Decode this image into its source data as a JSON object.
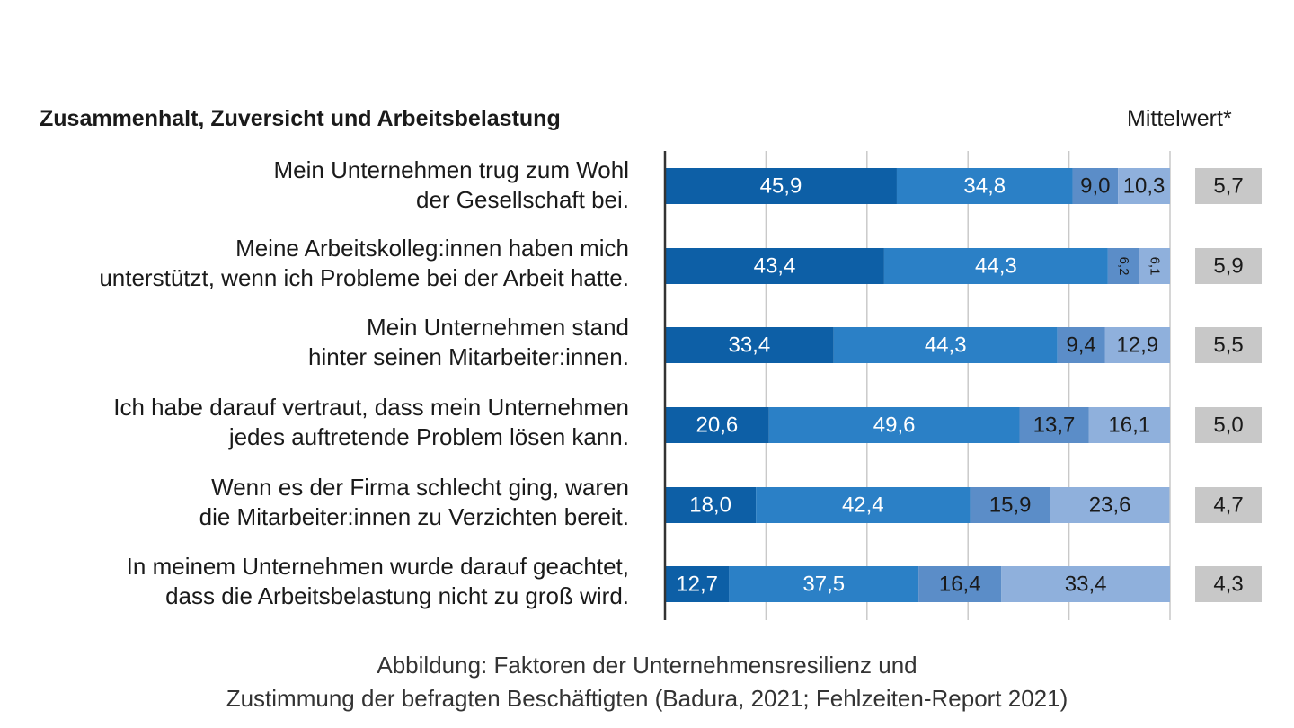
{
  "figure": {
    "caption_line1": "Abbildung: Faktoren der Unternehmensresilienz und",
    "caption_line2": "Zustimmung der befragten Beschäftigten (Badura, 2021; Fehlzeiten-Report 2021)"
  },
  "chart_data": {
    "type": "bar",
    "orientation": "horizontal",
    "stacked": true,
    "percent_of_total": true,
    "title": "Zusammenhalt, Zuversicht und Arbeitsbelastung",
    "mean_header": "Mittelwert*",
    "xlim": [
      0,
      100
    ],
    "grid": "vertical",
    "categories": [
      [
        "Mein Unternehmen trug zum Wohl",
        "der Gesellschaft bei."
      ],
      [
        "Meine Arbeitskolleg:innen haben mich",
        "unterstützt, wenn ich Probleme bei der Arbeit hatte."
      ],
      [
        "Mein Unternehmen stand",
        "hinter seinen Mitarbeiter:innen."
      ],
      [
        "Ich habe darauf vertraut, dass mein Unternehmen",
        "jedes auftretende Problem lösen kann."
      ],
      [
        "Wenn es der Firma schlecht ging, waren",
        "die Mitarbeiter:innen zu Verzichten bereit."
      ],
      [
        "In meinem Unternehmen wurde darauf geachtet,",
        "dass die Arbeitsbelastung nicht zu groß wird."
      ]
    ],
    "series": [
      {
        "color": "#0d5fa6",
        "values": [
          45.9,
          43.4,
          33.4,
          20.6,
          18.0,
          12.7
        ]
      },
      {
        "color": "#2b80c6",
        "values": [
          34.8,
          44.3,
          44.3,
          49.6,
          42.4,
          37.5
        ]
      },
      {
        "color": "#5b8dc8",
        "values": [
          9.0,
          6.2,
          9.4,
          13.7,
          15.9,
          16.4
        ]
      },
      {
        "color": "#8fb0dc",
        "values": [
          10.3,
          6.1,
          12.9,
          16.1,
          23.6,
          33.4
        ]
      }
    ],
    "value_labels": [
      [
        "45,9",
        "34,8",
        "9,0",
        "10,3"
      ],
      [
        "43,4",
        "44,3",
        "6,2",
        "6,1"
      ],
      [
        "33,4",
        "44,3",
        "9,4",
        "12,9"
      ],
      [
        "20,6",
        "49,6",
        "13,7",
        "16,1"
      ],
      [
        "18,0",
        "42,4",
        "15,9",
        "23,6"
      ],
      [
        "12,7",
        "37,5",
        "16,4",
        "33,4"
      ]
    ],
    "rotated_labels": [
      [
        false,
        false,
        false,
        false
      ],
      [
        false,
        false,
        true,
        true
      ],
      [
        false,
        false,
        false,
        false
      ],
      [
        false,
        false,
        false,
        false
      ],
      [
        false,
        false,
        false,
        false
      ],
      [
        false,
        false,
        false,
        false
      ]
    ],
    "means": [
      "5,7",
      "5,9",
      "5,5",
      "5,0",
      "4,7",
      "4,3"
    ],
    "colors": {
      "mean_box": "#c8c8c8",
      "grid": "#c9c9c9",
      "axis": "#333333",
      "label_light": "#ffffff",
      "label_dark": "#1a1a1a"
    }
  }
}
